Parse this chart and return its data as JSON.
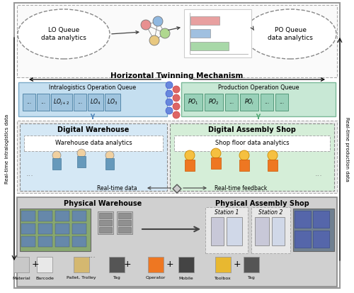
{
  "bg_color": "#ffffff",
  "outer_box_ec": "#888888",
  "top_section_bg": "#f8f8f8",
  "top_section_ec": "#aaaaaa",
  "lo_ellipse_fc": "#ffffff",
  "lo_ellipse_ec": "#888888",
  "po_ellipse_fc": "#ffffff",
  "po_ellipse_ec": "#888888",
  "horizontal_mechanism": "Horizontal Twinning Mechanism",
  "left_side_label": "Real-time intralogistics data",
  "right_side_label": "Real-time production data",
  "lo_queue_line1": "LO Queue",
  "lo_queue_line2": "data analytics",
  "po_queue_line1": "PO Queue",
  "po_queue_line2": "data analytics",
  "queue_section_lo_bg": "#c5dff0",
  "queue_section_lo_ec": "#7aaac8",
  "queue_section_po_bg": "#c8e8d5",
  "queue_section_po_ec": "#7ab898",
  "lo_queue_title": "Intralogistics Operation Queue",
  "po_queue_title": "Production Operation Queue",
  "lo_cell_fc": "#a0c4de",
  "lo_cell_ec": "#5588aa",
  "po_cell_fc": "#98d0b8",
  "po_cell_ec": "#55997a",
  "digital_section_bg": "#eeeeee",
  "digital_section_ec": "#aaaaaa",
  "digital_warehouse_bg": "#d5e8f5",
  "digital_warehouse_ec": "#888888",
  "digital_assembly_bg": "#d5eed8",
  "digital_assembly_ec": "#888888",
  "analytics_box_fc": "#ffffff",
  "analytics_box_ec": "#aaaaaa",
  "physical_section_bg": "#d0d0d0",
  "physical_section_ec": "#888888",
  "physical_section_inner_ec": "#aaaaaa",
  "station_box_fc": "#e8e8e8",
  "station_box_ec": "#aaaaaa",
  "legend_bg": "#e8e8e8",
  "legend_ec": "#aaaaaa",
  "arrow_color": "#444444",
  "dna_color1": "#6688dd",
  "dna_color2": "#dd6666",
  "network_colors": [
    "#e89090",
    "#90b8e0",
    "#b0d890",
    "#e8c880"
  ],
  "bar_colors": [
    "#e8a0a0",
    "#a0c0e0",
    "#a8d8a8"
  ],
  "realtime_data_text": "Real-time data",
  "realtime_feedback_text": "Real-time feedback",
  "digital_warehouse_title": "Digital Warehouse",
  "digital_assembly_title": "Digital Assembly Shop",
  "warehouse_analytics_text": "Warehouse data analytics",
  "shop_analytics_text": "Shop floor data analytics",
  "physical_warehouse_title": "Physical Warehouse",
  "physical_assembly_title": "Physical Assembly Shop",
  "station1_text": "Station 1",
  "station2_text": "Station 2",
  "legend_labels": [
    "Material",
    "Barcode",
    "Pallet, Trolley",
    "Tag",
    "Operator",
    "Mobile",
    "Toolbox",
    "Tag"
  ]
}
